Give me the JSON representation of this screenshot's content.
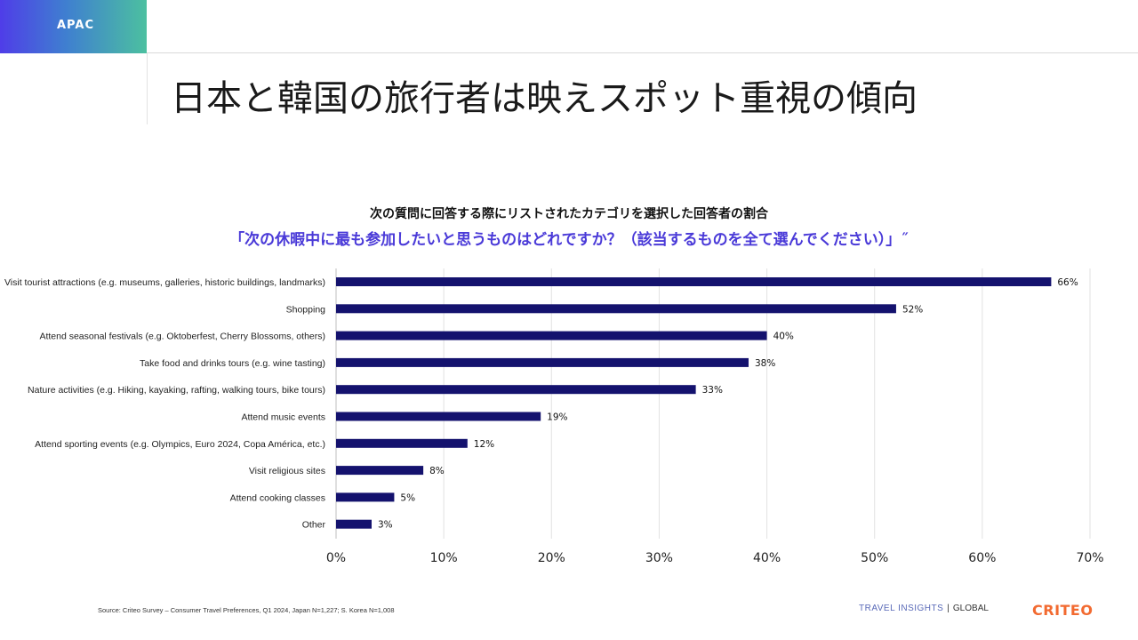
{
  "region_tag": "APAC",
  "title": "日本と韓国の旅行者は映えスポット重視の傾向",
  "chart_subtitle": "次の質問に回答する際にリストされたカテゴリを選択した回答者の割合",
  "chart_question": "「次の休暇中に最も参加したいと思うものはどれですか？（該当するものを全て選んでください）」˝",
  "source": "Source: Criteo Survey – Consumer Travel Preferences, Q1 2024, Japan N=1,227; S. Korea N=1,008",
  "footer": {
    "travel_insights": "TRAVEL INSIGHTS",
    "separator": "|",
    "global": "GLOBAL"
  },
  "logo": "CRITEO",
  "colors": {
    "bar": "#14126e",
    "accent": "#4a3ad8",
    "logo": "#f26a30"
  },
  "chart_data": {
    "type": "bar",
    "orientation": "horizontal",
    "categories": [
      "Visit tourist attractions (e.g. museums, galleries, historic buildings, landmarks)",
      "Shopping",
      "Attend seasonal festivals (e.g. Oktoberfest, Cherry Blossoms, others)",
      "Take food and drinks tours (e.g. wine tasting)",
      "Nature activities (e.g. Hiking, kayaking, rafting, walking tours, bike tours)",
      "Attend music events",
      "Attend sporting events (e.g. Olympics, Euro 2024, Copa América, etc.)",
      "Visit religious sites",
      "Attend cooking classes",
      "Other"
    ],
    "values": [
      66.4,
      52.0,
      40.0,
      38.3,
      33.4,
      19.0,
      12.2,
      8.1,
      5.4,
      3.3
    ],
    "value_labels": [
      "66%",
      "52%",
      "40%",
      "38%",
      "33%",
      "19%",
      "12%",
      "8%",
      "5%",
      "3%"
    ],
    "xlim": [
      0,
      70
    ],
    "xticks": [
      0,
      10,
      20,
      30,
      40,
      50,
      60,
      70
    ],
    "xtick_labels": [
      "0%",
      "10%",
      "20%",
      "30%",
      "40%",
      "50%",
      "60%",
      "70%"
    ],
    "title": "次の質問に回答する際にリストされたカテゴリを選択した回答者の割合",
    "grid": true
  }
}
